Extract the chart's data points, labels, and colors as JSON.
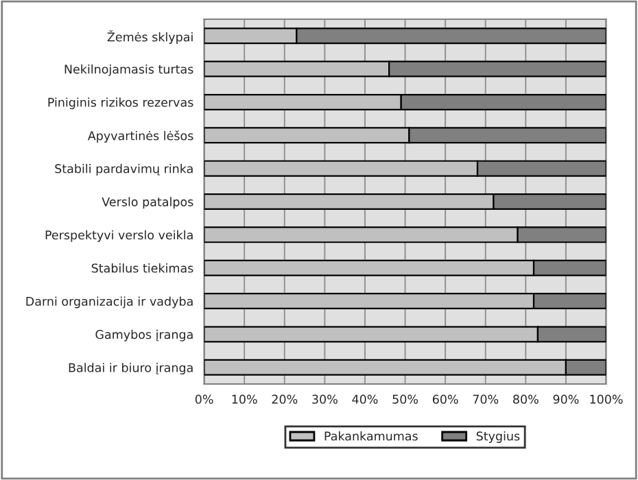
{
  "chart_data": {
    "type": "bar",
    "orientation": "horizontal",
    "stacked": true,
    "categories": [
      "Žemės sklypai",
      "Nekilnojamasis turtas",
      "Piniginis rizikos rezervas",
      "Apyvartinės lėšos",
      "Stabili pardavimų rinka",
      "Verslo patalpos",
      "Perspektyvi verslo veikla",
      "Stabilus tiekimas",
      "Darni organizacija ir vadyba",
      "Gamybos įranga",
      "Baldai ir biuro įranga"
    ],
    "series": [
      {
        "name": "Pakankamumas",
        "color": "#c0c0c0",
        "values": [
          23,
          46,
          49,
          51,
          68,
          72,
          78,
          82,
          82,
          83,
          90
        ]
      },
      {
        "name": "Stygius",
        "color": "#808080",
        "values": [
          77,
          54,
          51,
          49,
          32,
          28,
          22,
          18,
          18,
          17,
          10
        ]
      }
    ],
    "xlim": [
      0,
      100
    ],
    "xticks": [
      {
        "value": 0,
        "label": "0%"
      },
      {
        "value": 10,
        "label": "10%"
      },
      {
        "value": 20,
        "label": "20%"
      },
      {
        "value": 30,
        "label": "30%"
      },
      {
        "value": 40,
        "label": "40%"
      },
      {
        "value": 50,
        "label": "50%"
      },
      {
        "value": 60,
        "label": "60%"
      },
      {
        "value": 70,
        "label": "70%"
      },
      {
        "value": 80,
        "label": "80%"
      },
      {
        "value": 90,
        "label": "90%"
      },
      {
        "value": 100,
        "label": "100%"
      }
    ],
    "grid": "x",
    "legend": "bottom"
  }
}
